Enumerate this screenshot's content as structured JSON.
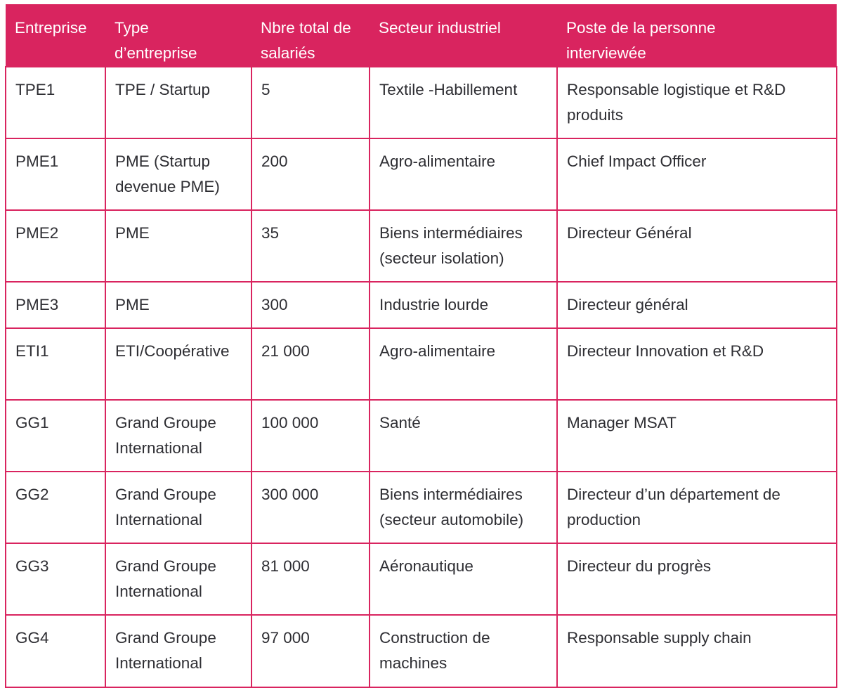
{
  "table": {
    "headers": [
      "Entreprise",
      "Type\nd’entreprise",
      "Nbre total de\nsalariés",
      "Secteur industriel",
      "Poste de la personne\ninterviewée"
    ],
    "rows": [
      [
        "TPE1",
        "TPE / Startup",
        "5",
        "Textile -Habillement",
        "Responsable logistique et R&D\nproduits"
      ],
      [
        "PME1",
        "PME (Startup\ndevenue PME)",
        "200",
        "Agro-alimentaire",
        "Chief Impact Officer"
      ],
      [
        "PME2",
        "PME",
        "35",
        "Biens intermédiaires\n(secteur isolation)",
        "Directeur Général"
      ],
      [
        "PME3",
        "PME",
        "300",
        "Industrie lourde",
        "Directeur général"
      ],
      [
        "ETI1",
        "ETI/Coopérative",
        "21 000",
        "Agro-alimentaire",
        "Directeur Innovation et R&D"
      ],
      [
        "GG1",
        "Grand Groupe\nInternational",
        "100 000",
        "Santé",
        "Manager MSAT"
      ],
      [
        "GG2",
        "Grand Groupe\nInternational",
        "300 000",
        "Biens intermédiaires\n(secteur automobile)",
        " Directeur d’un département de\nproduction"
      ],
      [
        "GG3",
        "Grand Groupe\nInternational",
        "81 000",
        "Aéronautique",
        "Directeur du progrès"
      ],
      [
        "GG4",
        "Grand Groupe\nInternational",
        "97 000",
        "Construction de\nmachines",
        "Responsable supply chain"
      ]
    ]
  },
  "colors": {
    "header_background": "#d9245f",
    "header_text": "#ffffff",
    "grid_lines": "#d9245f",
    "body_text": "#2e2e33"
  }
}
